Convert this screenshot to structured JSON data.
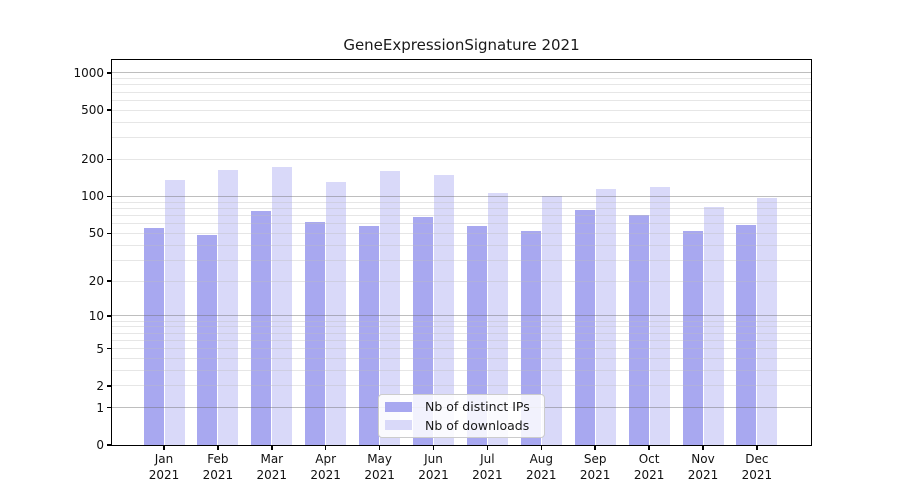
{
  "chart_data": {
    "type": "bar",
    "title": "GeneExpressionSignature 2021",
    "categories": [
      "Jan 2021",
      "Feb 2021",
      "Mar 2021",
      "Apr 2021",
      "May 2021",
      "Jun 2021",
      "Jul 2021",
      "Aug 2021",
      "Sep 2021",
      "Oct 2021",
      "Nov 2021",
      "Dec 2021"
    ],
    "series": [
      {
        "name": "Nb of distinct IPs",
        "color": "#a8a8f0",
        "values": [
          55,
          48,
          76,
          62,
          57,
          68,
          57,
          52,
          77,
          71,
          52,
          58
        ]
      },
      {
        "name": "Nb of downloads",
        "color": "#d9d9f9",
        "values": [
          135,
          165,
          172,
          130,
          162,
          150,
          106,
          100,
          115,
          120,
          82,
          97
        ]
      }
    ],
    "y_axis": {
      "scale": "symlog",
      "tick_values": [
        0,
        1,
        2,
        5,
        10,
        20,
        50,
        100,
        200,
        500,
        1000
      ],
      "ylim": [
        0,
        1280
      ]
    },
    "legend": {
      "location": "lower center inside"
    },
    "grid": {
      "major": true,
      "minor": true
    },
    "layout": {
      "legend_position": "bottom-center",
      "grid_on": true
    }
  },
  "colors": {
    "background": "#ffffff",
    "bar_ips": "#a8a8f0",
    "bar_downloads": "#d9d9f9",
    "major_grid": "#6e6e6e",
    "minor_grid": "#bebebe",
    "spine": "#000000",
    "text": "#111111",
    "legend_border": "#cccccc"
  }
}
